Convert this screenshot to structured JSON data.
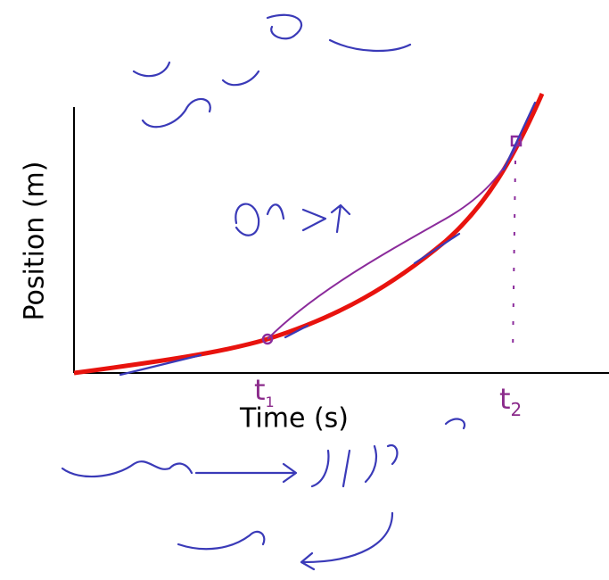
{
  "axes": {
    "y_label": "Position (m)",
    "x_label": "Time (s)"
  },
  "markers": [
    {
      "label": "t",
      "subscript": "1"
    },
    {
      "label": "t",
      "subscript": "2"
    }
  ]
}
